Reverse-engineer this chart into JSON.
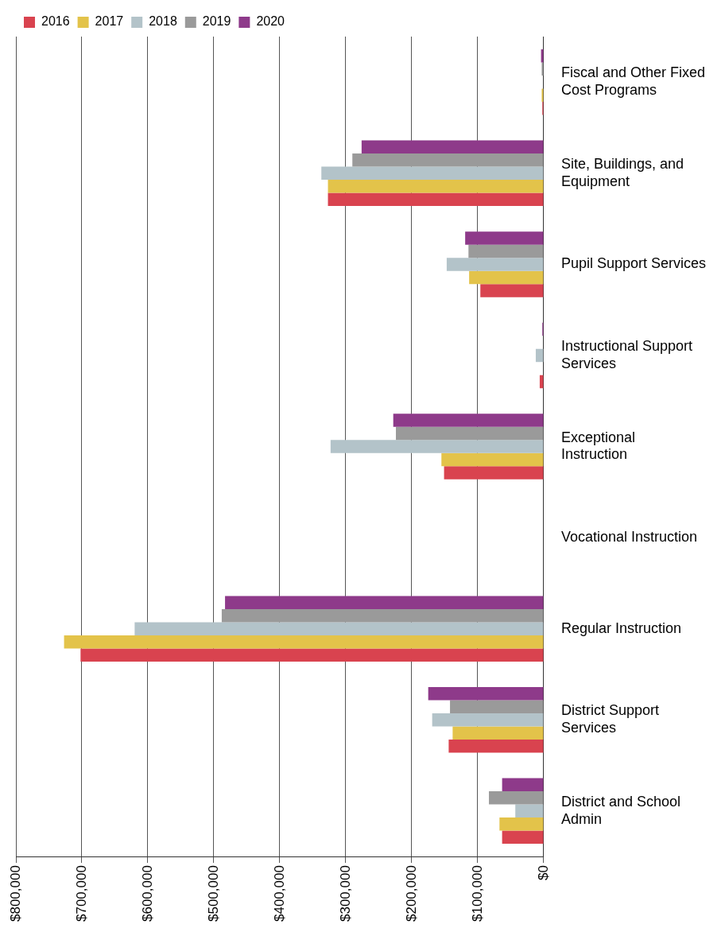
{
  "chart_data": {
    "type": "bar",
    "orientation": "horizontal",
    "categories": [
      "Fiscal and Other Fixed Cost Programs",
      "Site, Buildings, and Equipment",
      "Pupil Support Services",
      "Instructional Support Services",
      "Exceptional Instruction",
      "Vocational Instruction",
      "Regular Instruction",
      "District Support Services",
      "District and School Admin"
    ],
    "series": [
      {
        "name": "2016",
        "color": "#d9434f",
        "values": [
          2000,
          327000,
          96000,
          6000,
          151000,
          0,
          702000,
          144000,
          63000
        ]
      },
      {
        "name": "2017",
        "color": "#e3c34a",
        "values": [
          3000,
          327000,
          113000,
          null,
          155000,
          0,
          727000,
          138000,
          67000
        ]
      },
      {
        "name": "2018",
        "color": "#b3c3c9",
        "values": [
          null,
          337000,
          147000,
          12000,
          323000,
          0,
          620000,
          169000,
          43000
        ]
      },
      {
        "name": "2019",
        "color": "#9a9a9a",
        "values": [
          3000,
          290000,
          114000,
          null,
          224000,
          0,
          488000,
          142000,
          83000
        ]
      },
      {
        "name": "2020",
        "color": "#8e3a8a",
        "values": [
          4000,
          276000,
          119000,
          2000,
          228000,
          0,
          483000,
          175000,
          63000
        ]
      }
    ],
    "xlim": [
      800000,
      0
    ],
    "xticks": [
      {
        "value": 800000,
        "label": "$800,000"
      },
      {
        "value": 700000,
        "label": "$700,000"
      },
      {
        "value": 600000,
        "label": "$600,000"
      },
      {
        "value": 500000,
        "label": "$500,000"
      },
      {
        "value": 400000,
        "label": "$400,000"
      },
      {
        "value": 300000,
        "label": "$300,000"
      },
      {
        "value": 200000,
        "label": "$200,000"
      },
      {
        "value": 100000,
        "label": "$100,000"
      },
      {
        "value": 0,
        "label": "$0"
      }
    ],
    "grid": "x",
    "legend": "top left"
  }
}
